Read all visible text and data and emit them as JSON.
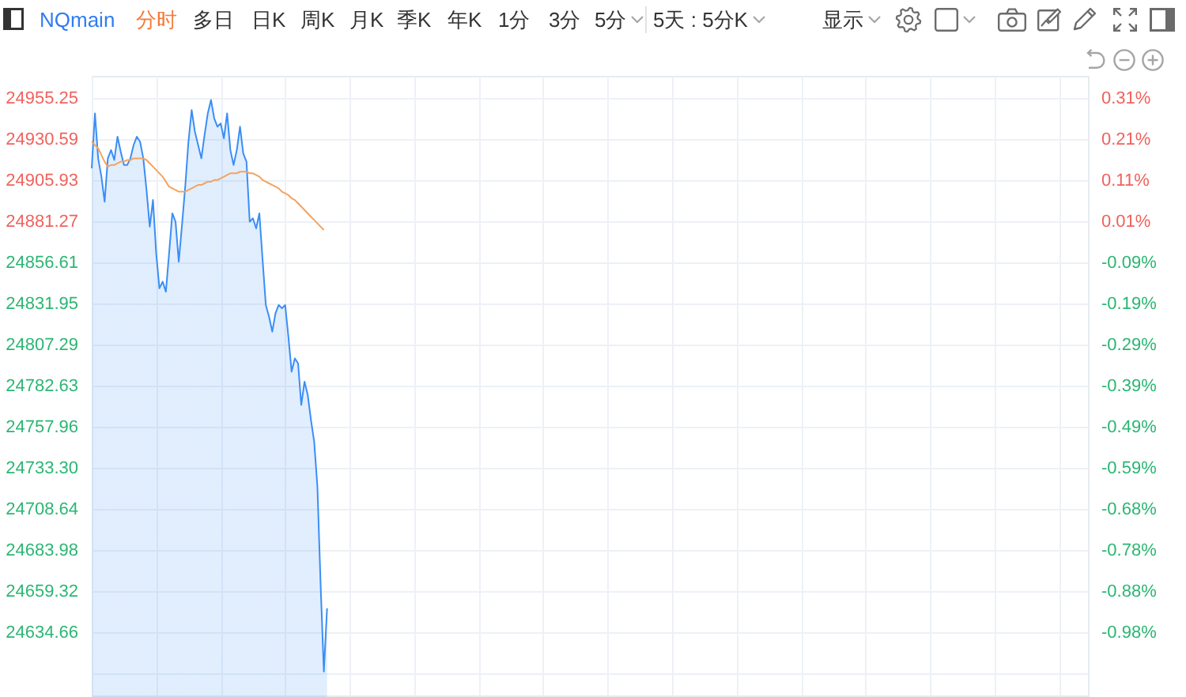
{
  "chart_data": {
    "type": "area",
    "title": "NQmain",
    "annotations": [
      "分时",
      "多日",
      "日K",
      "周K",
      "月K",
      "季K",
      "年K",
      "1分",
      "3分",
      "5分",
      "5天 : 5分K",
      "显示"
    ],
    "categories": [
      null,
      null,
      null,
      null,
      null,
      null,
      null,
      null,
      null,
      null,
      null,
      null,
      null,
      null,
      null,
      null,
      null,
      null,
      null,
      null,
      null,
      null,
      null,
      null,
      null,
      null,
      null,
      null,
      null,
      null,
      null,
      null,
      null,
      null,
      null,
      null,
      null,
      null,
      null,
      null,
      null,
      null,
      null,
      null,
      null,
      null,
      null,
      null,
      null,
      null,
      null,
      null,
      null,
      null,
      null,
      null,
      null,
      null,
      null,
      null,
      null,
      null,
      null,
      null,
      null,
      null,
      null,
      null,
      null,
      null,
      null,
      null,
      null,
      null,
      null,
      null,
      null,
      null,
      null,
      null,
      null,
      null,
      null,
      null,
      null,
      null,
      null,
      null,
      null,
      null,
      null,
      null,
      null,
      null,
      null,
      null,
      null,
      null,
      null,
      null,
      null,
      null,
      null,
      null,
      null,
      null,
      null,
      null,
      null,
      null,
      null,
      null,
      null,
      null,
      null,
      null,
      null,
      null,
      null,
      null,
      null,
      null,
      null,
      null,
      null,
      null,
      null,
      null,
      null,
      null,
      null,
      null,
      null,
      null,
      null,
      null,
      null,
      null,
      null,
      null,
      null,
      null,
      null,
      null,
      null,
      null,
      null,
      null,
      null,
      null,
      null,
      null,
      null,
      null,
      null,
      null,
      null,
      null,
      null,
      null,
      null,
      null,
      null,
      null,
      null,
      null,
      null,
      null,
      null,
      null,
      null,
      null,
      null,
      null,
      null,
      null,
      null,
      null,
      null,
      null,
      null,
      null,
      null,
      null,
      null,
      null,
      null,
      null,
      null,
      null,
      null,
      null,
      null,
      null,
      null,
      null,
      null,
      null,
      null,
      null,
      null,
      null,
      null,
      null,
      null,
      null,
      null,
      null,
      null,
      null,
      null,
      null,
      null,
      null,
      null,
      null,
      null,
      null,
      null,
      null,
      null,
      null,
      null,
      null,
      null,
      null,
      null,
      null,
      null,
      null,
      null,
      null,
      null,
      null,
      null,
      null,
      null,
      null,
      null,
      null,
      null,
      null,
      null,
      null,
      null,
      null,
      null,
      null,
      null,
      null,
      null,
      null,
      null,
      null,
      null,
      null,
      null,
      null,
      null,
      null,
      null,
      null,
      null,
      null,
      null,
      null,
      null,
      null,
      null,
      null,
      null,
      null,
      null,
      null,
      null,
      null,
      null,
      null,
      null,
      null,
      null,
      null,
      null,
      null,
      null,
      null,
      null,
      null,
      null,
      null,
      null,
      null,
      null,
      null,
      null,
      null,
      null,
      null,
      null,
      null,
      null,
      null,
      null,
      null,
      null,
      null,
      null,
      null,
      null,
      null
    ],
    "series": [
      {
        "color": "#3a8ef6",
        "values": [
          24913,
          24946,
          24919,
          24908,
          24893,
          24919,
          24924,
          24918,
          24932,
          24923,
          24915,
          24915,
          24919,
          24927,
          24932,
          24929,
          24919,
          24900,
          24878,
          24894,
          24862,
          24841,
          24845,
          24839,
          24862,
          24886,
          24881,
          24857,
          24879,
          24902,
          24929,
          24948,
          24935,
          24927,
          24919,
          24933,
          24946,
          24954,
          24943,
          24938,
          24940,
          24931,
          24946,
          24924,
          24915,
          24924,
          24938,
          24922,
          24917,
          24881,
          24883,
          24877,
          24886,
          24858,
          24831,
          24824,
          24815,
          24826,
          24831,
          24829,
          24831,
          24812,
          24791,
          24799,
          24796,
          24771,
          24785,
          24777,
          24762,
          24749,
          24722,
          24663,
          24611,
          24649,
          null,
          null,
          null,
          null,
          null,
          null,
          null,
          null,
          null,
          null,
          null,
          null,
          null,
          null,
          null,
          null,
          null,
          null,
          null,
          null,
          null,
          null,
          null,
          null,
          null,
          null,
          null,
          null,
          null,
          null,
          null,
          null,
          null,
          null,
          null,
          null,
          null,
          null,
          null,
          null,
          null,
          null,
          null,
          null,
          null,
          null,
          null,
          null,
          null,
          null,
          null,
          null,
          null,
          null,
          null,
          null,
          null,
          null,
          null,
          null,
          null,
          null,
          null,
          null,
          null,
          null,
          null,
          null,
          null,
          null,
          null,
          null,
          null,
          null,
          null,
          null,
          null,
          null,
          null,
          null,
          null,
          null,
          null,
          null,
          null,
          null,
          null,
          null,
          null,
          null,
          null,
          null,
          null,
          null,
          null,
          null,
          null,
          null,
          null,
          null,
          null,
          null,
          null,
          null,
          null,
          null,
          null,
          null,
          null,
          null,
          null,
          null,
          null,
          null,
          null,
          null,
          null,
          null,
          null,
          null,
          null,
          null,
          null,
          null,
          null,
          null,
          null,
          null,
          null,
          null,
          null,
          null,
          null,
          null,
          null,
          null,
          null,
          null,
          null,
          null,
          null,
          null,
          null,
          null,
          null,
          null,
          null,
          null,
          null,
          null,
          null,
          null,
          null,
          null,
          null,
          null,
          null,
          null,
          null,
          null,
          null,
          null,
          null,
          null,
          null,
          null,
          null,
          null,
          null,
          null,
          null,
          null,
          null,
          null,
          null,
          null,
          null,
          null,
          null,
          null,
          null,
          null,
          null,
          null,
          null,
          null,
          null,
          null,
          null,
          null,
          null,
          null,
          null,
          null,
          null,
          null,
          null,
          null,
          null,
          null,
          null,
          null,
          null,
          null,
          null,
          null,
          null,
          null,
          null,
          null,
          null,
          null,
          null,
          null,
          null,
          null,
          null,
          null,
          null,
          null,
          null,
          null,
          null,
          null,
          null,
          null,
          null,
          null,
          null,
          null,
          null,
          null,
          null,
          null,
          null,
          null
        ]
      },
      {
        "type": "line",
        "color": "#f4a360",
        "values": [
          24929,
          24927,
          24925,
          24921,
          24917,
          24914,
          24915,
          24915,
          24916,
          24917,
          24917,
          24918,
          24918,
          24919,
          24919,
          24919,
          24919,
          24918,
          24916,
          24914,
          24912,
          24910,
          24908,
          24905,
          24902,
          24901,
          24900,
          24899,
          24899,
          24899,
          24900,
          24901,
          24902,
          24903,
          24903,
          24904,
          24905,
          24905,
          24906,
          24906,
          24907,
          24908,
          24909,
          24910,
          24910,
          24910,
          24911,
          24911,
          24911,
          24910,
          24910,
          24909,
          24908,
          24906,
          24905,
          24904,
          24903,
          24902,
          24901,
          24899,
          24898,
          24897,
          24895,
          24894,
          24892,
          24890,
          24888,
          24886,
          24884,
          24882,
          24880,
          24878,
          24876,
          null,
          null,
          null,
          null,
          null,
          null,
          null,
          null,
          null,
          null,
          null,
          null,
          null,
          null,
          null,
          null,
          null,
          null,
          null,
          null,
          null,
          null,
          null,
          null,
          null,
          null,
          null,
          null,
          null,
          null,
          null,
          null,
          null,
          null,
          null,
          null,
          null,
          null,
          null,
          null,
          null,
          null,
          null,
          null,
          null,
          null,
          null,
          null,
          null,
          null,
          null,
          null,
          null,
          null,
          null,
          null,
          null,
          null,
          null,
          null,
          null,
          null,
          null,
          null,
          null,
          null,
          null,
          null,
          null,
          null,
          null,
          null,
          null,
          null,
          null,
          null,
          null,
          null,
          null,
          null,
          null,
          null,
          null,
          null,
          null,
          null,
          null,
          null,
          null,
          null,
          null,
          null,
          null,
          null,
          null,
          null,
          null,
          null,
          null,
          null,
          null,
          null,
          null,
          null,
          null,
          null,
          null,
          null,
          null,
          null,
          null,
          null,
          null,
          null,
          null,
          null,
          null,
          null,
          null,
          null,
          null,
          null,
          null,
          null,
          null,
          null,
          null,
          null,
          null,
          null,
          null,
          null,
          null,
          null,
          null,
          null,
          null,
          null,
          null,
          null,
          null,
          null,
          null,
          null,
          null,
          null,
          null,
          null,
          null,
          null,
          null,
          null,
          null,
          null,
          null,
          null,
          null,
          null,
          null,
          null,
          null,
          null,
          null,
          null,
          null,
          null,
          null,
          null,
          null,
          null,
          null,
          null,
          null,
          null,
          null,
          null,
          null,
          null,
          null,
          null,
          null,
          null,
          null,
          null,
          null,
          null,
          null,
          null,
          null,
          null,
          null,
          null,
          null,
          null,
          null,
          null,
          null,
          null,
          null,
          null,
          null,
          null,
          null,
          null,
          null,
          null,
          null,
          null,
          null,
          null,
          null,
          null,
          null,
          null,
          null,
          null,
          null,
          null,
          null,
          null,
          null,
          null,
          null,
          null,
          null,
          null,
          null,
          null,
          null,
          null,
          null,
          null,
          null,
          null,
          null,
          null,
          null
        ]
      }
    ],
    "ylim": [
      24596.7,
      24968.5
    ],
    "yticks": [
      24955.25,
      24930.59,
      24905.93,
      24881.27,
      24856.61,
      24831.95,
      24807.29,
      24782.63,
      24757.96,
      {
        "value": 24733.3,
        "label": "24733.30"
      },
      24708.64,
      24683.98,
      24659.32,
      24634.66,
      {
        "value": 24610,
        "label": null
      }
    ],
    "y2lim": [
      -1.134,
      0.36
    ],
    "y2ticks": [
      {
        "value": 0.307,
        "label": "0.31%"
      },
      {
        "value": 0.208,
        "label": "0.21%"
      },
      {
        "value": 0.108,
        "label": "0.11%"
      },
      {
        "value": 0.009,
        "label": "0.01%"
      },
      {
        "value": -0.09,
        "label": "-0.09%"
      },
      {
        "value": -0.189,
        "label": "-0.19%"
      },
      {
        "value": -0.288,
        "label": "-0.29%"
      },
      {
        "value": -0.387,
        "label": "-0.39%"
      },
      {
        "value": -0.486,
        "label": "-0.49%"
      },
      {
        "value": -0.585,
        "label": "-0.59%"
      },
      {
        "value": -0.685,
        "label": "-0.68%"
      },
      {
        "value": -0.784,
        "label": "-0.78%"
      },
      {
        "value": -0.883,
        "label": "-0.88%"
      },
      {
        "value": -0.982,
        "label": "-0.98%"
      }
    ],
    "grid": true
  }
}
